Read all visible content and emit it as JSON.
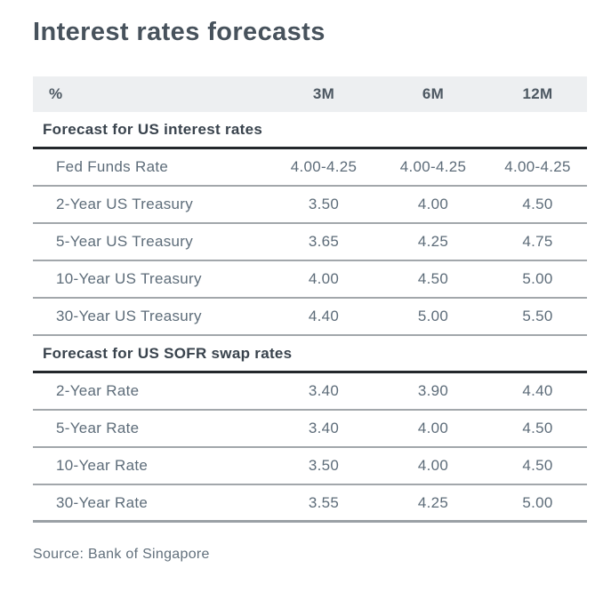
{
  "title": "Interest rates forecasts",
  "source": "Source: Bank of Singapore",
  "colors": {
    "title_text": "#47525c",
    "body_text": "#5d6c79",
    "section_text": "#39434d",
    "header_band_bg": "#edeff1",
    "section_rule": "#24282c",
    "row_rule": "#a2a7ab"
  },
  "table": {
    "columns": [
      "%",
      "3M",
      "6M",
      "12M"
    ],
    "sections": [
      {
        "title": "Forecast for US interest rates",
        "rows": [
          {
            "label": "Fed Funds Rate",
            "values": [
              "4.00-4.25",
              "4.00-4.25",
              "4.00-4.25"
            ]
          },
          {
            "label": "2-Year US Treasury",
            "values": [
              "3.50",
              "4.00",
              "4.50"
            ]
          },
          {
            "label": "5-Year US Treasury",
            "values": [
              "3.65",
              "4.25",
              "4.75"
            ]
          },
          {
            "label": "10-Year US Treasury",
            "values": [
              "4.00",
              "4.50",
              "5.00"
            ]
          },
          {
            "label": "30-Year US Treasury",
            "values": [
              "4.40",
              "5.00",
              "5.50"
            ]
          }
        ]
      },
      {
        "title": "Forecast for US SOFR swap rates",
        "rows": [
          {
            "label": "2-Year Rate",
            "values": [
              "3.40",
              "3.90",
              "4.40"
            ]
          },
          {
            "label": "5-Year Rate",
            "values": [
              "3.40",
              "4.00",
              "4.50"
            ]
          },
          {
            "label": "10-Year Rate",
            "values": [
              "3.50",
              "4.00",
              "4.50"
            ]
          },
          {
            "label": "30-Year Rate",
            "values": [
              "3.55",
              "4.25",
              "5.00"
            ]
          }
        ]
      }
    ]
  }
}
